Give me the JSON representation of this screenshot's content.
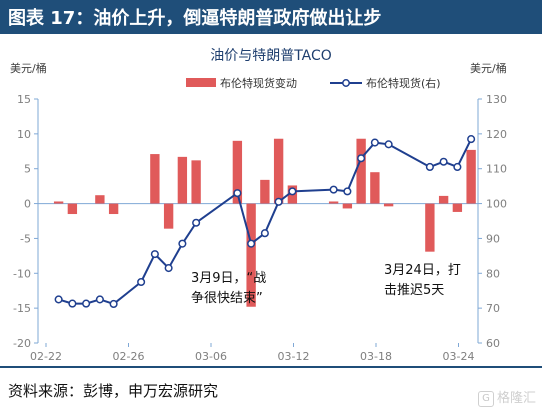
{
  "header": {
    "title": "图表 17：油价上升，倒逼特朗普政府做出让步"
  },
  "footer": {
    "source": "资料来源：彭博，申万宏源研究"
  },
  "watermark": {
    "icon_text": "G",
    "text": "格隆汇"
  },
  "colors": {
    "title_bar": "#1f4e79",
    "bar": "#e05a5a",
    "line": "#1f3f8f",
    "axis_line": "#7fa8d6",
    "axis_text": "#7f7f7f",
    "title_text": "#1f3f6f"
  },
  "chart_data": {
    "type": "bar+line",
    "title": "油价与特朗普TACO",
    "left_axis_unit": "美元/桶",
    "right_axis_unit": "美元/桶",
    "left_ylim": [
      -20,
      15
    ],
    "left_yticks": [
      -20,
      -15,
      -10,
      -5,
      0,
      5,
      10,
      15
    ],
    "right_ylim": [
      60,
      130
    ],
    "right_yticks": [
      60,
      70,
      80,
      90,
      100,
      110,
      120,
      130
    ],
    "x_tick_labels": [
      "02-22",
      "02-26",
      "03-06",
      "03-12",
      "03-18",
      "03-24"
    ],
    "legend": [
      {
        "name": "布伦特现货变动",
        "kind": "bar"
      },
      {
        "name": "布伦特现货(右)",
        "kind": "line"
      }
    ],
    "series": [
      {
        "name": "布伦特现货变动",
        "axis": "left",
        "type": "bar",
        "points": [
          {
            "x": 1,
            "y": 0.3
          },
          {
            "x": 2,
            "y": -1.5
          },
          {
            "x": 4,
            "y": 1.2
          },
          {
            "x": 5,
            "y": -1.5
          },
          {
            "x": 8,
            "y": 7.1
          },
          {
            "x": 9,
            "y": -3.6
          },
          {
            "x": 10,
            "y": 6.7
          },
          {
            "x": 11,
            "y": 6.2
          },
          {
            "x": 14,
            "y": 9.0
          },
          {
            "x": 15,
            "y": -14.8
          },
          {
            "x": 16,
            "y": 3.4
          },
          {
            "x": 17,
            "y": 9.3
          },
          {
            "x": 18,
            "y": 2.6
          },
          {
            "x": 21,
            "y": 0.3
          },
          {
            "x": 22,
            "y": -0.7
          },
          {
            "x": 23,
            "y": 9.3
          },
          {
            "x": 24,
            "y": 4.5
          },
          {
            "x": 25,
            "y": -0.4
          },
          {
            "x": 28,
            "y": -6.9
          },
          {
            "x": 29,
            "y": 1.1
          },
          {
            "x": 30,
            "y": -1.2
          },
          {
            "x": 31,
            "y": 7.7
          }
        ]
      },
      {
        "name": "布伦特现货(右)",
        "axis": "right",
        "type": "line",
        "points": [
          {
            "x": 1,
            "y": 72.5
          },
          {
            "x": 2,
            "y": 71.3
          },
          {
            "x": 3,
            "y": 71.3
          },
          {
            "x": 4,
            "y": 72.5
          },
          {
            "x": 5,
            "y": 71.2
          },
          {
            "x": 7,
            "y": 77.5
          },
          {
            "x": 8,
            "y": 85.5
          },
          {
            "x": 9,
            "y": 81.5
          },
          {
            "x": 10,
            "y": 88.5
          },
          {
            "x": 11,
            "y": 94.5
          },
          {
            "x": 14,
            "y": 103.0
          },
          {
            "x": 15,
            "y": 88.5
          },
          {
            "x": 16,
            "y": 91.5
          },
          {
            "x": 17,
            "y": 100.5
          },
          {
            "x": 18,
            "y": 103.5
          },
          {
            "x": 21,
            "y": 104.0
          },
          {
            "x": 22,
            "y": 103.5
          },
          {
            "x": 23,
            "y": 113.0
          },
          {
            "x": 24,
            "y": 117.5
          },
          {
            "x": 25,
            "y": 117.0
          },
          {
            "x": 28,
            "y": 110.5
          },
          {
            "x": 29,
            "y": 112.0
          },
          {
            "x": 30,
            "y": 110.5
          },
          {
            "x": 31,
            "y": 118.5
          }
        ]
      }
    ],
    "annotations": [
      {
        "line1": "3月9日，“战",
        "line2": "争很快结束”"
      },
      {
        "line1": "3月24日，打",
        "line2": "击推迟5天"
      }
    ]
  }
}
